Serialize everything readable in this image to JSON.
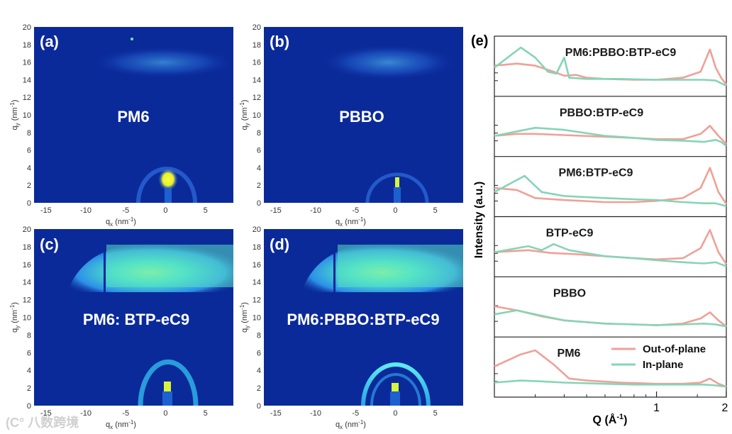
{
  "colors": {
    "detector_bg": "#0b2a9a",
    "out_of_plane": "#f0a097",
    "in_plane": "#86d4b6"
  },
  "panels": [
    {
      "id": "a",
      "letter": "(a)",
      "label": "PM6"
    },
    {
      "id": "b",
      "letter": "(b)",
      "label": "PBBO"
    },
    {
      "id": "c",
      "letter": "(c)",
      "label": "PM6: BTP-eC9"
    },
    {
      "id": "d",
      "letter": "(d)",
      "label": "PM6:PBBO:BTP-eC9"
    }
  ],
  "gi_axes": {
    "y_label_main": "q",
    "y_label_sub": "y",
    "y_label_unit": " (nm",
    "y_label_exp": "-1",
    "y_label_close": ")",
    "x_label_main": "q",
    "x_label_sub": "x",
    "x_label_unit": " (nm",
    "x_label_exp": "-1",
    "x_label_close": ")",
    "y_ticks": [
      "20",
      "18",
      "16",
      "14",
      "12",
      "10",
      "8",
      "6",
      "4",
      "2",
      "0"
    ],
    "x_ticks": [
      "-15",
      "-10",
      "-5",
      "0",
      "5"
    ]
  },
  "chart_data": {
    "type": "line",
    "panel_letter": "(e)",
    "xlabel_main": "Q (Å",
    "xlabel_exp": "-1",
    "xlabel_close": ")",
    "ylabel": "Intensity (a.u.)",
    "x_scale": "log",
    "xlim": [
      0.2,
      2.0
    ],
    "x_ticks": [
      "1",
      "2"
    ],
    "legend": {
      "placement": "bottom-right",
      "entries": [
        "Out-of-plane",
        "In-plane"
      ]
    },
    "samples": [
      {
        "name": "PM6:PBBO:BTP-eC9",
        "out_of_plane": [
          [
            0.2,
            0.55
          ],
          [
            0.25,
            0.6
          ],
          [
            0.3,
            0.55
          ],
          [
            0.36,
            0.4
          ],
          [
            0.4,
            0.3
          ],
          [
            0.45,
            0.32
          ],
          [
            0.5,
            0.25
          ],
          [
            0.6,
            0.22
          ],
          [
            0.8,
            0.2
          ],
          [
            1.0,
            0.2
          ],
          [
            1.3,
            0.25
          ],
          [
            1.55,
            0.4
          ],
          [
            1.7,
            0.95
          ],
          [
            1.8,
            0.5
          ],
          [
            1.9,
            0.25
          ],
          [
            2.0,
            0.08
          ]
        ],
        "in_plane": [
          [
            0.2,
            0.5
          ],
          [
            0.26,
            1.0
          ],
          [
            0.3,
            0.75
          ],
          [
            0.34,
            0.4
          ],
          [
            0.37,
            0.35
          ],
          [
            0.4,
            0.75
          ],
          [
            0.42,
            0.25
          ],
          [
            0.5,
            0.22
          ],
          [
            0.7,
            0.22
          ],
          [
            1.0,
            0.2
          ],
          [
            1.3,
            0.2
          ],
          [
            1.6,
            0.2
          ],
          [
            1.8,
            0.18
          ],
          [
            2.0,
            0.05
          ]
        ]
      },
      {
        "name": "PBBO:BTP-eC9",
        "out_of_plane": [
          [
            0.2,
            0.3
          ],
          [
            0.25,
            0.35
          ],
          [
            0.3,
            0.35
          ],
          [
            0.4,
            0.32
          ],
          [
            0.6,
            0.28
          ],
          [
            0.8,
            0.25
          ],
          [
            1.0,
            0.22
          ],
          [
            1.3,
            0.22
          ],
          [
            1.55,
            0.35
          ],
          [
            1.7,
            0.55
          ],
          [
            1.85,
            0.3
          ],
          [
            2.0,
            0.1
          ]
        ],
        "in_plane": [
          [
            0.2,
            0.3
          ],
          [
            0.3,
            0.5
          ],
          [
            0.4,
            0.45
          ],
          [
            0.6,
            0.3
          ],
          [
            0.8,
            0.25
          ],
          [
            1.0,
            0.2
          ],
          [
            1.3,
            0.18
          ],
          [
            1.6,
            0.15
          ],
          [
            1.8,
            0.2
          ],
          [
            1.9,
            0.15
          ],
          [
            2.0,
            0.05
          ]
        ]
      },
      {
        "name": "PM6:BTP-eC9",
        "out_of_plane": [
          [
            0.2,
            0.5
          ],
          [
            0.25,
            0.45
          ],
          [
            0.3,
            0.25
          ],
          [
            0.4,
            0.2
          ],
          [
            0.6,
            0.15
          ],
          [
            0.8,
            0.15
          ],
          [
            1.0,
            0.18
          ],
          [
            1.3,
            0.25
          ],
          [
            1.55,
            0.5
          ],
          [
            1.7,
            1.0
          ],
          [
            1.85,
            0.4
          ],
          [
            2.0,
            0.1
          ]
        ],
        "in_plane": [
          [
            0.2,
            0.4
          ],
          [
            0.27,
            0.8
          ],
          [
            0.32,
            0.4
          ],
          [
            0.4,
            0.3
          ],
          [
            0.6,
            0.25
          ],
          [
            0.8,
            0.22
          ],
          [
            1.0,
            0.2
          ],
          [
            1.3,
            0.15
          ],
          [
            1.6,
            0.12
          ],
          [
            1.8,
            0.12
          ],
          [
            2.0,
            0.05
          ]
        ]
      },
      {
        "name": "BTP-eC9",
        "out_of_plane": [
          [
            0.2,
            0.4
          ],
          [
            0.28,
            0.45
          ],
          [
            0.35,
            0.38
          ],
          [
            0.45,
            0.35
          ],
          [
            0.6,
            0.3
          ],
          [
            0.8,
            0.25
          ],
          [
            1.0,
            0.22
          ],
          [
            1.3,
            0.25
          ],
          [
            1.55,
            0.5
          ],
          [
            1.7,
            0.95
          ],
          [
            1.85,
            0.4
          ],
          [
            2.0,
            0.1
          ]
        ],
        "in_plane": [
          [
            0.2,
            0.4
          ],
          [
            0.28,
            0.55
          ],
          [
            0.32,
            0.45
          ],
          [
            0.36,
            0.6
          ],
          [
            0.42,
            0.45
          ],
          [
            0.6,
            0.3
          ],
          [
            0.8,
            0.25
          ],
          [
            1.0,
            0.2
          ],
          [
            1.3,
            0.15
          ],
          [
            1.6,
            0.12
          ],
          [
            1.8,
            0.15
          ],
          [
            2.0,
            0.05
          ]
        ]
      },
      {
        "name": "PBBO",
        "out_of_plane": [
          [
            0.2,
            0.55
          ],
          [
            0.25,
            0.45
          ],
          [
            0.32,
            0.3
          ],
          [
            0.4,
            0.2
          ],
          [
            0.6,
            0.12
          ],
          [
            0.8,
            0.1
          ],
          [
            1.0,
            0.08
          ],
          [
            1.3,
            0.12
          ],
          [
            1.55,
            0.25
          ],
          [
            1.7,
            0.4
          ],
          [
            1.85,
            0.2
          ],
          [
            2.0,
            0.05
          ]
        ],
        "in_plane": [
          [
            0.2,
            0.35
          ],
          [
            0.25,
            0.45
          ],
          [
            0.3,
            0.35
          ],
          [
            0.4,
            0.2
          ],
          [
            0.6,
            0.12
          ],
          [
            0.8,
            0.1
          ],
          [
            1.0,
            0.08
          ],
          [
            1.3,
            0.1
          ],
          [
            1.6,
            0.12
          ],
          [
            1.8,
            0.1
          ],
          [
            2.0,
            0.05
          ]
        ]
      },
      {
        "name": "PM6",
        "out_of_plane": [
          [
            0.2,
            0.55
          ],
          [
            0.26,
            0.85
          ],
          [
            0.3,
            0.95
          ],
          [
            0.36,
            0.6
          ],
          [
            0.42,
            0.25
          ],
          [
            0.5,
            0.2
          ],
          [
            0.7,
            0.15
          ],
          [
            1.0,
            0.12
          ],
          [
            1.3,
            0.12
          ],
          [
            1.55,
            0.15
          ],
          [
            1.7,
            0.25
          ],
          [
            1.85,
            0.12
          ],
          [
            2.0,
            0.05
          ]
        ],
        "in_plane": [
          [
            0.2,
            0.15
          ],
          [
            0.26,
            0.2
          ],
          [
            0.32,
            0.18
          ],
          [
            0.4,
            0.15
          ],
          [
            0.6,
            0.12
          ],
          [
            0.8,
            0.1
          ],
          [
            1.0,
            0.1
          ],
          [
            1.3,
            0.1
          ],
          [
            1.6,
            0.1
          ],
          [
            1.8,
            0.08
          ],
          [
            2.0,
            0.05
          ]
        ]
      }
    ]
  },
  "watermark": "(C° 八数跨境"
}
